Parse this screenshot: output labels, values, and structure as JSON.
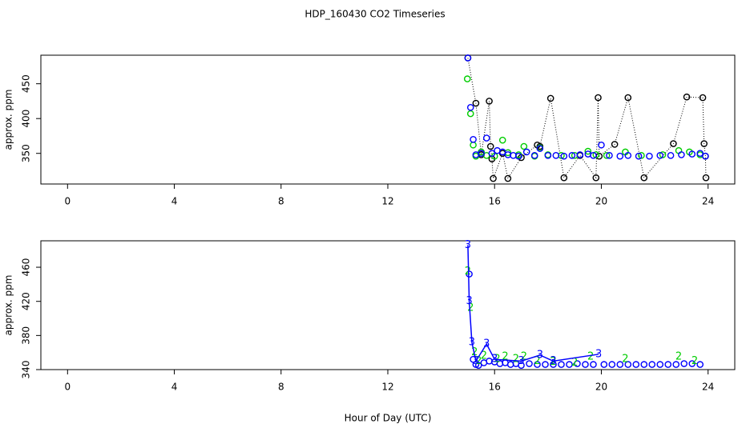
{
  "chart_data": [
    {
      "type": "scatter",
      "title": "HDP_160430  CO2 Timeseries",
      "ylabel": "approx. ppm",
      "xlim": [
        -1,
        25
      ],
      "xticks": [
        0,
        4,
        8,
        12,
        16,
        20,
        24
      ],
      "ylim": [
        306,
        491
      ],
      "yticks": [
        350,
        400,
        450
      ],
      "series": [
        {
          "color": "#000000",
          "symbol": "circle",
          "line": "dotted",
          "x": [
            15.0,
            15.3,
            15.5,
            15.8,
            15.85,
            15.9,
            15.95,
            16.3,
            16.5,
            17.0,
            17.6,
            17.7,
            18.1,
            18.6,
            19.2,
            19.8,
            19.88,
            19.92,
            20.5,
            21.0,
            21.6,
            22.7,
            23.2,
            23.8,
            23.85,
            23.9,
            23.92
          ],
          "values": [
            487,
            422,
            348,
            425,
            360,
            342,
            314,
            350,
            314,
            344,
            362,
            360,
            429,
            315,
            347,
            315,
            430,
            346,
            363,
            430,
            315,
            364,
            431,
            430,
            364,
            346,
            315
          ]
        },
        {
          "color": "#00cd00",
          "symbol": "circle",
          "x": [
            14.98,
            15.1,
            15.2,
            15.3,
            15.5,
            15.7,
            16.0,
            16.3,
            16.5,
            16.9,
            17.1,
            17.5,
            17.7,
            18.0,
            18.5,
            19.0,
            19.5,
            19.8,
            20.2,
            20.9,
            21.5,
            22.3,
            22.9,
            23.3,
            23.7
          ],
          "values": [
            457,
            407,
            362,
            346,
            352,
            347,
            346,
            369,
            351,
            348,
            360,
            346,
            358,
            348,
            347,
            347,
            353,
            348,
            347,
            352,
            347,
            348,
            354,
            352,
            348
          ]
        },
        {
          "color": "#0000ff",
          "symbol": "circle",
          "x": [
            15.0,
            15.1,
            15.2,
            15.3,
            15.5,
            15.7,
            15.9,
            16.1,
            16.3,
            16.5,
            16.7,
            16.9,
            17.2,
            17.5,
            17.7,
            18.0,
            18.3,
            18.6,
            18.9,
            19.2,
            19.5,
            19.7,
            20.0,
            20.3,
            20.7,
            21.0,
            21.4,
            21.8,
            22.2,
            22.6,
            23.0,
            23.4,
            23.7,
            23.9
          ],
          "values": [
            487,
            416,
            370,
            348,
            350,
            372,
            350,
            354,
            352,
            348,
            347,
            346,
            352,
            347,
            357,
            347,
            347,
            346,
            347,
            348,
            349,
            347,
            362,
            347,
            346,
            347,
            346,
            346,
            347,
            347,
            348,
            349,
            350,
            346
          ]
        }
      ]
    },
    {
      "type": "scatter",
      "ylabel": "approx. ppm",
      "xlabel": "Hour of Day (UTC)",
      "xlim": [
        -1,
        25
      ],
      "xticks": [
        0,
        4,
        8,
        12,
        16,
        20,
        24
      ],
      "ylim": [
        340,
        491
      ],
      "yticks": [
        340,
        380,
        420,
        460
      ],
      "series": [
        {
          "color": "#0000ff",
          "symbol": "circle",
          "x": [
            15.05,
            15.2,
            15.3,
            15.4,
            15.6,
            15.8,
            16.0,
            16.2,
            16.4,
            16.6,
            16.8,
            17.0,
            17.3,
            17.6,
            17.9,
            18.2,
            18.5,
            18.8,
            19.1,
            19.4,
            19.7,
            20.1,
            20.4,
            20.7,
            21.0,
            21.3,
            21.6,
            21.9,
            22.2,
            22.5,
            22.8,
            23.1,
            23.4,
            23.7
          ],
          "values": [
            452,
            352,
            346,
            345,
            348,
            350,
            349,
            347,
            348,
            346,
            347,
            345,
            347,
            346,
            346,
            346,
            346,
            346,
            347,
            346,
            346,
            346,
            346,
            346,
            346,
            346,
            346,
            346,
            346,
            346,
            346,
            347,
            347,
            346
          ]
        },
        {
          "color": "#00cd00",
          "symbol": "2",
          "x": [
            15.0,
            15.1,
            15.25,
            15.4,
            15.6,
            16.1,
            16.4,
            16.8,
            17.1,
            17.6,
            18.2,
            19.0,
            19.6,
            20.9,
            22.9,
            23.5
          ],
          "values": [
            455,
            412,
            360,
            350,
            356,
            352,
            355,
            352,
            355,
            350,
            349,
            348,
            355,
            352,
            355,
            350
          ]
        },
        {
          "color": "#0000ff",
          "symbol": "3",
          "line": "solid",
          "x": [
            15.0,
            15.05,
            15.15,
            15.3,
            15.7,
            16.0,
            17.0,
            17.7,
            18.2,
            19.9
          ],
          "values": [
            486,
            420,
            372,
            350,
            370,
            352,
            350,
            357,
            350,
            358
          ]
        }
      ]
    }
  ]
}
